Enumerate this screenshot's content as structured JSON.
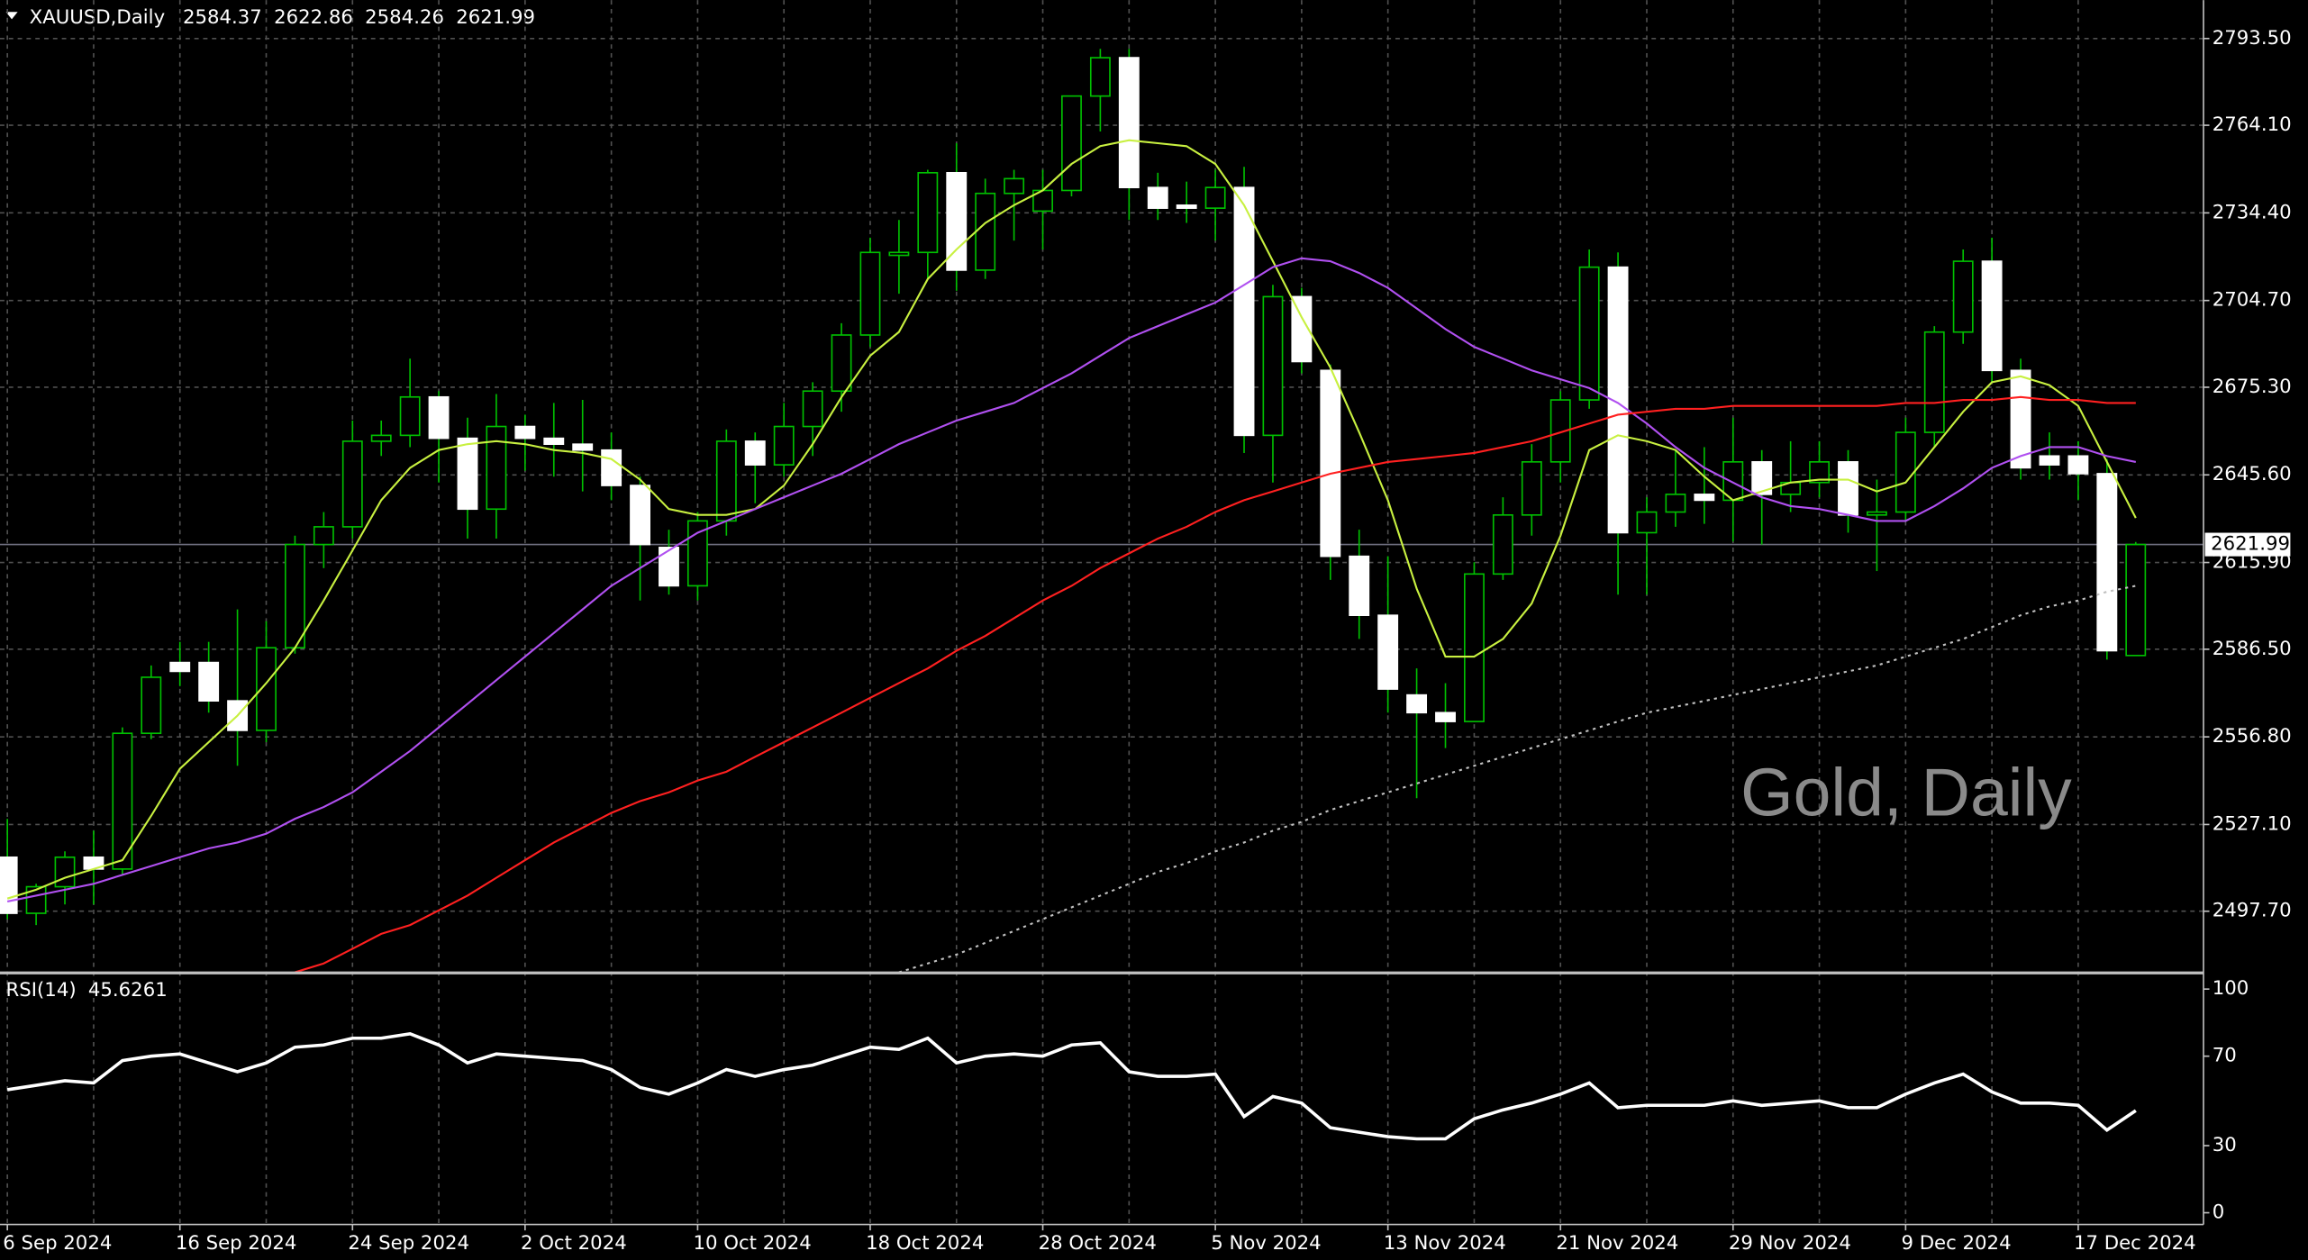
{
  "chart_data": {
    "type": "candlestick",
    "title": "XAUUSD,Daily",
    "watermark": "Gold, Daily",
    "categories": [
      "6 Sep 2024",
      null,
      null,
      null,
      null,
      null,
      "16 Sep 2024",
      null,
      null,
      null,
      null,
      null,
      "24 Sep 2024",
      null,
      null,
      null,
      null,
      null,
      "2 Oct 2024",
      null,
      null,
      null,
      null,
      null,
      "10 Oct 2024",
      null,
      null,
      null,
      null,
      null,
      "18 Oct 2024",
      null,
      null,
      null,
      null,
      null,
      "28 Oct 2024",
      null,
      null,
      null,
      null,
      null,
      "5 Nov 2024",
      null,
      null,
      null,
      null,
      null,
      "13 Nov 2024",
      null,
      null,
      null,
      null,
      null,
      "21 Nov 2024",
      null,
      null,
      null,
      null,
      null,
      "29 Nov 2024",
      null,
      null,
      null,
      null,
      null,
      "9 Dec 2024",
      null,
      null,
      null,
      null,
      null,
      "17 Dec 2024",
      null,
      null
    ],
    "open": [
      2516,
      2497,
      2506,
      2516,
      2512,
      2558,
      2582,
      2582,
      2569,
      2559,
      2587,
      2622,
      2628,
      2657,
      2659,
      2672,
      2658,
      2634,
      2662,
      2658,
      2656,
      2654,
      2642,
      2621,
      2608,
      2630,
      2657,
      2649,
      2662,
      2674,
      2693,
      2720,
      2721,
      2748,
      2715,
      2741,
      2735,
      2742,
      2774,
      2787,
      2743,
      2737,
      2736,
      2743,
      2659,
      2706,
      2681,
      2618,
      2598,
      2571,
      2565,
      2562,
      2612,
      2632,
      2650,
      2671,
      2716,
      2626,
      2633,
      2639,
      2637,
      2650,
      2639,
      2643,
      2650,
      2632,
      2633,
      2660,
      2694,
      2718,
      2681,
      2652,
      2652,
      2646,
      2584.37
    ],
    "high": [
      2529,
      2507,
      2518,
      2525,
      2560,
      2581,
      2589,
      2589,
      2600,
      2596,
      2625,
      2633,
      2664,
      2664,
      2685,
      2674,
      2665,
      2673,
      2666,
      2670,
      2671,
      2660,
      2645,
      2627,
      2633,
      2661,
      2660,
      2670,
      2677,
      2697,
      2726,
      2732,
      2749,
      2758,
      2746,
      2749,
      2749,
      2774,
      2790,
      2790,
      2748,
      2745,
      2749,
      2750,
      2710,
      2709,
      2683,
      2627,
      2618,
      2580,
      2575,
      2616,
      2638,
      2656,
      2674,
      2722,
      2721,
      2638,
      2654,
      2655,
      2665,
      2654,
      2657,
      2657,
      2654,
      2644,
      2665,
      2696,
      2722,
      2726,
      2685,
      2660,
      2657,
      2651,
      2622.86
    ],
    "low": [
      2495,
      2493,
      2500,
      2500,
      2510,
      2556,
      2574,
      2565,
      2547,
      2555,
      2585,
      2614,
      2624,
      2652,
      2655,
      2643,
      2624,
      2624,
      2647,
      2645,
      2640,
      2637,
      2603,
      2605,
      2603,
      2625,
      2636,
      2645,
      2652,
      2667,
      2689,
      2707,
      2712,
      2708,
      2712,
      2725,
      2722,
      2740,
      2762,
      2732,
      2732,
      2731,
      2725,
      2653,
      2643,
      2680,
      2610,
      2590,
      2565,
      2536,
      2553,
      2562,
      2610,
      2625,
      2643,
      2668,
      2605,
      2605,
      2628,
      2629,
      2623,
      2622,
      2633,
      2638,
      2626,
      2613,
      2630,
      2655,
      2690,
      2677,
      2644,
      2644,
      2637,
      2583,
      2584.26
    ],
    "close": [
      2497,
      2506,
      2516,
      2512,
      2558,
      2577,
      2579,
      2569,
      2559,
      2587,
      2622,
      2628,
      2657,
      2659,
      2672,
      2658,
      2634,
      2662,
      2658,
      2656,
      2654,
      2642,
      2622,
      2608,
      2630,
      2657,
      2649,
      2662,
      2674,
      2693,
      2721,
      2721,
      2748,
      2715,
      2741,
      2746,
      2742,
      2774,
      2787,
      2743,
      2736,
      2736,
      2743,
      2659,
      2706,
      2684,
      2618,
      2598,
      2573,
      2565,
      2562,
      2612,
      2632,
      2650,
      2671,
      2716,
      2626,
      2633,
      2639,
      2637,
      2650,
      2639,
      2643,
      2650,
      2632,
      2633,
      2660,
      2694,
      2718,
      2681,
      2648,
      2649,
      2646,
      2586,
      2621.99
    ],
    "up_color": "#00c000",
    "down_color": "#ffffff",
    "ylim": [
      2477.3,
      2806.5
    ],
    "yticks": [
      {
        "value": 2793.5,
        "label": "2793.50"
      },
      {
        "value": 2764.1,
        "label": "2764.10"
      },
      {
        "value": 2734.4,
        "label": "2734.40"
      },
      {
        "value": 2704.7,
        "label": "2704.70"
      },
      {
        "value": 2675.3,
        "label": "2675.30"
      },
      {
        "value": 2645.6,
        "label": "2645.60"
      },
      {
        "value": 2615.9,
        "label": "2615.90"
      },
      {
        "value": 2586.5,
        "label": "2586.50"
      },
      {
        "value": 2556.8,
        "label": "2556.80"
      },
      {
        "value": 2527.1,
        "label": "2527.10"
      },
      {
        "value": 2497.7,
        "label": "2497.70"
      }
    ],
    "grid": true,
    "overlays": [
      {
        "color": "#c8f040",
        "dashed": false,
        "values": [
          2502,
          2505,
          2509,
          2512,
          2515,
          2530,
          2546,
          2555,
          2564,
          2575,
          2587,
          2603,
          2620,
          2637,
          2648,
          2654,
          2656,
          2657,
          2656,
          2654,
          2653,
          2651,
          2644,
          2634,
          2632,
          2632,
          2634,
          2642,
          2656,
          2672,
          2686,
          2694,
          2712,
          2722,
          2731,
          2737,
          2742,
          2751,
          2757,
          2759,
          2758,
          2757,
          2751,
          2737,
          2718,
          2699,
          2682,
          2660,
          2637,
          2607,
          2584,
          2584,
          2590,
          2602,
          2625,
          2654,
          2659,
          2657,
          2654,
          2645,
          2637,
          2640,
          2643,
          2644,
          2644,
          2640,
          2643,
          2655,
          2667,
          2677,
          2679,
          2676,
          2669,
          2650,
          2631
        ]
      },
      {
        "color": "#b050f0",
        "dashed": false,
        "values": [
          2501,
          2503,
          2505,
          2507,
          2510,
          2513,
          2516,
          2519,
          2521,
          2524,
          2529,
          2533,
          2538,
          2545,
          2552,
          2560,
          2568,
          2576,
          2584,
          2592,
          2600,
          2608,
          2614,
          2620,
          2626,
          2630,
          2634,
          2638,
          2642,
          2646,
          2651,
          2656,
          2660,
          2664,
          2667,
          2670,
          2675,
          2680,
          2686,
          2692,
          2696,
          2700,
          2704,
          2710,
          2716,
          2719,
          2718,
          2714,
          2709,
          2702,
          2695,
          2689,
          2685,
          2681,
          2678,
          2675,
          2670,
          2663,
          2655,
          2648,
          2643,
          2638,
          2635,
          2634,
          2632,
          2630,
          2630,
          2635,
          2641,
          2648,
          2652,
          2655,
          2655,
          2652,
          2650
        ]
      },
      {
        "color": "#ff2020",
        "dashed": false,
        "values": [
          null,
          null,
          null,
          null,
          null,
          null,
          null,
          null,
          null,
          null,
          2477,
          2480,
          2485,
          2490,
          2493,
          2498,
          2503,
          2509,
          2515,
          2521,
          2526,
          2531,
          2535,
          2538,
          2542,
          2545,
          2550,
          2555,
          2560,
          2565,
          2570,
          2575,
          2580,
          2586,
          2591,
          2597,
          2603,
          2608,
          2614,
          2619,
          2624,
          2628,
          2633,
          2637,
          2640,
          2643,
          2646,
          2648,
          2650,
          2651,
          2652,
          2653,
          2655,
          2657,
          2660,
          2663,
          2666,
          2667,
          2668,
          2668,
          2669,
          2669,
          2669,
          2669,
          2669,
          2669,
          2670,
          2670,
          2671,
          2671,
          2672,
          2671,
          2671,
          2670,
          2670
        ]
      },
      {
        "color": "#c0c0c0",
        "dashed": true,
        "values": [
          null,
          null,
          null,
          null,
          null,
          null,
          null,
          null,
          null,
          null,
          null,
          null,
          null,
          null,
          null,
          null,
          null,
          null,
          null,
          null,
          null,
          null,
          null,
          null,
          null,
          null,
          null,
          null,
          null,
          null,
          null,
          2477,
          2480,
          2483,
          2487,
          2491,
          2495,
          2499,
          2503,
          2507,
          2511,
          2514,
          2518,
          2521,
          2525,
          2528,
          2532,
          2535,
          2538,
          2541,
          2544,
          2547,
          2550,
          2553,
          2556,
          2559,
          2562,
          2565,
          2567,
          2569,
          2571,
          2573,
          2575,
          2577,
          2579,
          2581,
          2584,
          2587,
          2590,
          2594,
          2598,
          2601,
          2603,
          2606,
          2608
        ]
      }
    ],
    "rsi": {
      "name": "RSI(14)",
      "color": "#ffffff",
      "ylim": [
        0,
        100
      ],
      "yticks": [
        100,
        70,
        30,
        0
      ],
      "values": [
        55,
        57,
        59,
        58,
        68,
        70,
        71,
        67,
        63,
        67,
        74,
        75,
        78,
        78,
        80,
        75,
        67,
        71,
        70,
        69,
        68,
        64,
        56,
        53,
        58,
        64,
        61,
        64,
        66,
        70,
        74,
        73,
        78,
        67,
        70,
        71,
        70,
        75,
        76,
        63,
        61,
        61,
        62,
        43,
        52,
        49,
        38,
        36,
        34,
        33,
        33,
        42,
        46,
        49,
        53,
        58,
        47,
        48,
        48,
        48,
        50,
        48,
        49,
        50,
        47,
        47,
        53,
        58,
        62,
        54,
        49,
        49,
        48,
        37,
        45.6261
      ]
    }
  }
}
